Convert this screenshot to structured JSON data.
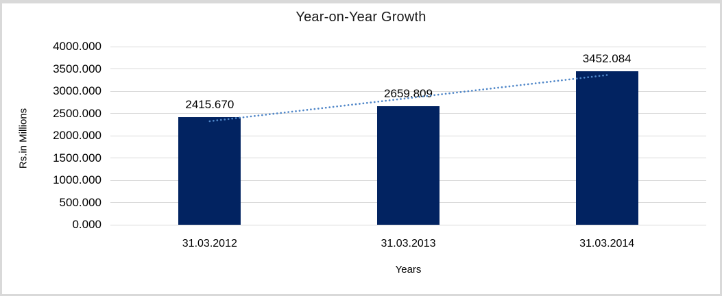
{
  "chart_data": {
    "type": "bar",
    "title": "Year-on-Year Growth",
    "categories": [
      "31.03.2012",
      "31.03.2013",
      "31.03.2014"
    ],
    "values": [
      2415.67,
      2659.809,
      3452.084
    ],
    "data_labels": [
      "2415.670",
      "2659.809",
      "3452.084"
    ],
    "xlabel": "Years",
    "ylabel": "Rs.in Millions",
    "ylim": [
      0,
      4000
    ],
    "ytick_step": 500,
    "ytick_labels": [
      "0.000",
      "500.000",
      "1000.000",
      "1500.000",
      "2000.000",
      "2500.000",
      "3000.000",
      "3500.000",
      "4000.000"
    ],
    "grid": true,
    "legend": "none",
    "trendline": {
      "type": "linear",
      "style": "dotted"
    },
    "colors": {
      "bar": "#022361",
      "trendline": "#4F86C8",
      "gridline": "#D9D9D9",
      "text": "#000000",
      "frame_border": "#D9D9D9"
    }
  }
}
